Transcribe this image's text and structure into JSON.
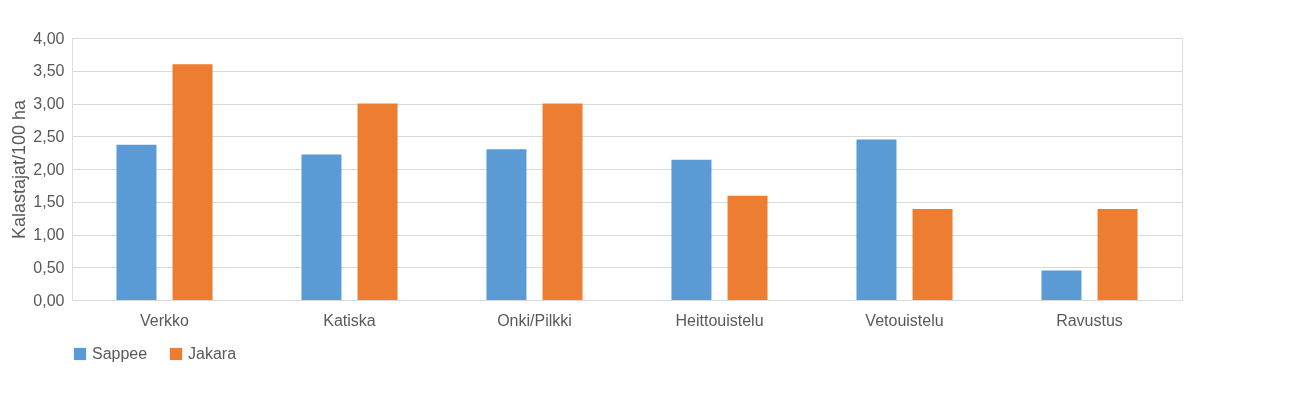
{
  "chart_data": {
    "type": "bar",
    "ylabel": "Kalastajat/100 ha",
    "categories": [
      "Verkko",
      "Katiska",
      "Onki/Pilkki",
      "Heittouistelu",
      "Vetouistelu",
      "Ravustus"
    ],
    "series": [
      {
        "name": "Sappee",
        "color": "#5b9bd5",
        "values": [
          2.37,
          2.22,
          2.3,
          2.14,
          2.45,
          0.45
        ]
      },
      {
        "name": "Jakara",
        "color": "#ed7d31",
        "values": [
          3.6,
          3.0,
          3.0,
          1.59,
          1.39,
          1.39
        ]
      }
    ],
    "ylim": [
      0,
      4
    ],
    "yticks": [
      {
        "value": 0,
        "label": "0,00"
      },
      {
        "value": 0.5,
        "label": "0,50"
      },
      {
        "value": 1,
        "label": "1,00"
      },
      {
        "value": 1.5,
        "label": "1,50"
      },
      {
        "value": 2,
        "label": "2,00"
      },
      {
        "value": 2.5,
        "label": "2,50"
      },
      {
        "value": 3,
        "label": "3,00"
      },
      {
        "value": 3.5,
        "label": "3,50"
      },
      {
        "value": 4,
        "label": "4,00"
      }
    ],
    "grid": "y",
    "legend": "bottom"
  }
}
